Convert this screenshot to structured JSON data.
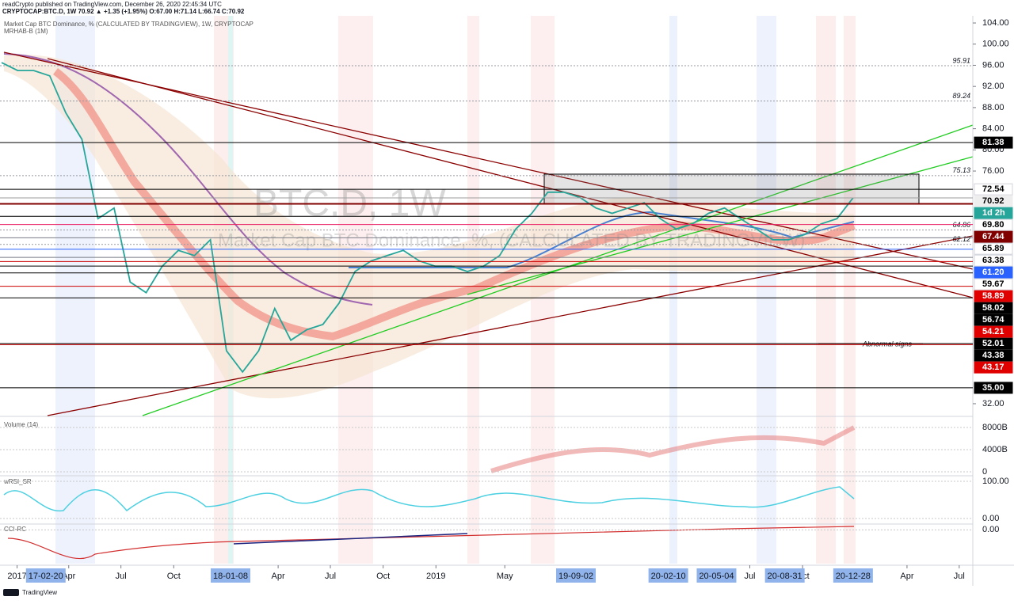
{
  "header": {
    "publisher": "readCrypto published on TradingView.com, December 26, 2020 22:45:34 UTC",
    "symbol_line": "CRYPTOCAP:BTC.D, 1W  70.92 ▲ +1.35 (+1.95%) O:67.00 H:71.14 L:66.74 C:70.92",
    "study_line": "Market Cap BTC Dominance, % (CALCULATED BY TRADINGVIEW), 1W, CRYPTOCAP",
    "indicator": "MRHAB-B (1M)"
  },
  "chart_data": {
    "type": "line",
    "title": "BTC.D, 1W",
    "subtitle": "Market Cap BTC Dominance, %, (CALCULATED BY TRADINGVIEW)",
    "color": "#26a69a",
    "x": [
      "2016-12-05",
      "2017-01-02",
      "2017-01-30",
      "2017-02-27",
      "2017-03-27",
      "2017-04-24",
      "2017-05-22",
      "2017-06-19",
      "2017-07-17",
      "2017-08-14",
      "2017-09-11",
      "2017-10-09",
      "2017-11-06",
      "2017-12-04",
      "2018-01-01",
      "2018-01-29",
      "2018-02-26",
      "2018-03-26",
      "2018-04-23",
      "2018-05-21",
      "2018-06-18",
      "2018-07-16",
      "2018-08-13",
      "2018-09-10",
      "2018-10-08",
      "2018-11-05",
      "2018-12-03",
      "2018-12-31",
      "2019-01-28",
      "2019-02-25",
      "2019-03-25",
      "2019-04-22",
      "2019-05-20",
      "2019-06-17",
      "2019-07-15",
      "2019-08-12",
      "2019-09-09",
      "2019-10-07",
      "2019-11-04",
      "2019-12-02",
      "2019-12-30",
      "2020-01-27",
      "2020-02-24",
      "2020-03-23",
      "2020-04-20",
      "2020-05-18",
      "2020-06-15",
      "2020-07-13",
      "2020-08-10",
      "2020-09-07",
      "2020-10-05",
      "2020-11-02",
      "2020-11-30",
      "2020-12-28"
    ],
    "values": [
      96.5,
      95,
      95,
      94,
      87,
      82,
      67,
      69,
      55,
      53,
      58,
      61,
      60,
      63,
      42,
      38,
      42,
      50,
      44,
      46,
      47,
      51,
      57,
      59,
      60,
      61,
      59,
      58,
      58,
      57,
      58,
      60,
      65,
      68,
      72,
      72,
      71,
      69,
      68,
      69,
      70,
      67,
      65,
      66,
      68,
      69,
      67,
      65,
      63,
      63,
      64,
      66,
      67,
      70.92
    ],
    "ylim": [
      29.75,
      105.35
    ],
    "yticks": [
      {
        "value": 104,
        "label": "104.00"
      },
      {
        "value": 100,
        "label": "100.00"
      },
      {
        "value": 96,
        "label": "96.00"
      },
      {
        "value": 92,
        "label": "92.00"
      },
      {
        "value": 88,
        "label": "88.00"
      },
      {
        "value": 84,
        "label": "84.00"
      },
      {
        "value": 80,
        "label": "80.00"
      },
      {
        "value": 76,
        "label": "76.00"
      },
      {
        "value": 32,
        "label": "32.00"
      }
    ],
    "xticks": [
      {
        "value": "2017-01-01",
        "label": "2017"
      },
      {
        "value": "2017-04-01",
        "label": "Apr"
      },
      {
        "value": "2017-07-01",
        "label": "Jul"
      },
      {
        "value": "2017-10-01",
        "label": "Oct"
      },
      {
        "value": "2018-04-01",
        "label": "Apr"
      },
      {
        "value": "2018-07-01",
        "label": "Jul"
      },
      {
        "value": "2018-10-01",
        "label": "Oct"
      },
      {
        "value": "2019-01-01",
        "label": "2019"
      },
      {
        "value": "2019-05-01",
        "label": "May"
      },
      {
        "value": "2020-07-01",
        "label": "Jul"
      },
      {
        "value": "2020-10-01",
        "label": "Oct"
      },
      {
        "value": "2021-04-01",
        "label": "Apr"
      },
      {
        "value": "2021-07-01",
        "label": "Jul"
      }
    ],
    "date_badges": [
      "17-02-20",
      "18-01-08",
      "19-09-02",
      "20-02-10",
      "20-05-04",
      "20-08-31",
      "20-12-28"
    ],
    "price_levels": [
      {
        "value": 81.38,
        "line": "#000000",
        "bg": "#000000",
        "fg": "#ffffff"
      },
      {
        "value": 72.54,
        "line": "#000000",
        "bg": "#ffffff",
        "fg": "#000000"
      },
      {
        "value": 70.92,
        "line": "#9e9e9e",
        "bg": "#eeeeee",
        "fg": "#000000"
      },
      {
        "value": 69.8,
        "label": "69.80",
        "line": "#800000",
        "bg": "#ffffff",
        "fg": "#000000"
      },
      {
        "value": 67.44,
        "line": "#000000",
        "bg": "#800000",
        "fg": "#ffffff"
      },
      {
        "value": 65.89,
        "line": "#e91e63",
        "bg": "#ffffff",
        "fg": "#000000"
      },
      {
        "value": 63.38,
        "line": "#787b86",
        "bg": "#ffffff",
        "fg": "#000000"
      },
      {
        "value": 61.2,
        "label": "61.20",
        "line": "#2962ff",
        "bg": "#2962ff",
        "fg": "#ffffff"
      },
      {
        "value": 59.67,
        "line": "#787b86",
        "bg": "#ffffff",
        "fg": "#000000"
      },
      {
        "value": 58.89,
        "line": "#cc0000",
        "bg": "#e00000",
        "fg": "#ffffff"
      },
      {
        "value": 58.02,
        "line": "#000000",
        "bg": "#000000",
        "fg": "#ffffff"
      },
      {
        "value": 56.74,
        "line": "#000000",
        "bg": "#000000",
        "fg": "#ffffff"
      },
      {
        "value": 54.21,
        "line": "#cc0000",
        "bg": "#e00000",
        "fg": "#ffffff"
      },
      {
        "value": 52.01,
        "line": "#000000",
        "bg": "#000000",
        "fg": "#ffffff"
      },
      {
        "value": 43.38,
        "line": "#000000",
        "bg": "#000000",
        "fg": "#ffffff"
      },
      {
        "value": 43.17,
        "line": "#cc0000",
        "bg": "#e00000",
        "fg": "#ffffff"
      },
      {
        "value": 35,
        "label": "35.00",
        "line": "#000000",
        "bg": "#000000",
        "fg": "#ffffff"
      }
    ],
    "countdown": "1d 2h",
    "level_notes": [
      95.91,
      89.24,
      75.13,
      64.86,
      62.12
    ],
    "annotation": "Abnormal signs",
    "panes": [
      {
        "name": "Volume (14)",
        "ylim": [
          -570,
          9430
        ],
        "yticks": [
          {
            "value": 8000,
            "label": "8000B"
          },
          {
            "value": 4000,
            "label": "4000B"
          },
          0
        ]
      },
      {
        "name": "wRSI_SR",
        "ylim": [
          -14.9,
          112.8
        ],
        "yticks": [
          {
            "value": 100,
            "label": "100.00"
          },
          {
            "value": 0,
            "label": "0.00"
          }
        ]
      },
      {
        "name": "CCI-RC",
        "ylim": [
          -350,
          60
        ],
        "yticks": [
          {
            "value": 0,
            "label": "0.00"
          }
        ]
      }
    ]
  },
  "footer": {
    "brand": "TradingView"
  }
}
